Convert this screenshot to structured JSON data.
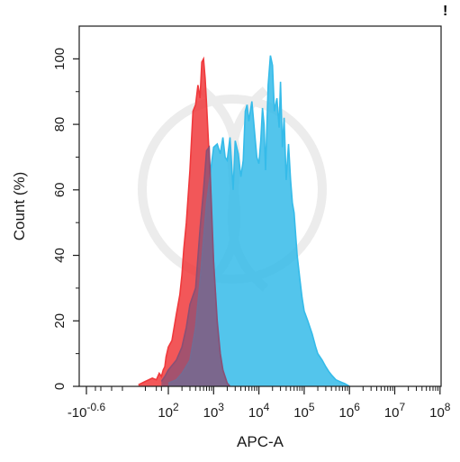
{
  "corner_mark": "!",
  "chart_data": {
    "type": "area",
    "title": "",
    "xlabel": "APC-A",
    "ylabel": "Count (%)",
    "x_scale": "biexponential",
    "xlim": [
      -10,
      100000000
    ],
    "ylim": [
      0,
      110
    ],
    "x_ticks": [
      {
        "label": "-10",
        "sup": "-0.6",
        "value": -0.25
      },
      {
        "label": "10",
        "sup": "2",
        "value": 100
      },
      {
        "label": "10",
        "sup": "3",
        "value": 1000
      },
      {
        "label": "10",
        "sup": "4",
        "value": 10000
      },
      {
        "label": "10",
        "sup": "5",
        "value": 100000
      },
      {
        "label": "10",
        "sup": "6",
        "value": 1000000
      },
      {
        "label": "10",
        "sup": "7",
        "value": 10000000
      },
      {
        "label": "10",
        "sup": "8",
        "value": 100000000
      }
    ],
    "y_ticks": [
      0,
      20,
      40,
      60,
      80,
      100
    ],
    "grid": false,
    "series": [
      {
        "color": "#f0393c",
        "x": [
          5,
          10,
          20,
          30,
          40,
          50,
          60,
          70,
          80,
          100,
          120,
          150,
          180,
          200,
          220,
          250,
          280,
          300,
          350,
          400,
          450,
          500,
          550,
          600,
          650,
          700,
          800,
          900,
          1000,
          1100,
          1200,
          1400,
          1600,
          1800,
          2000,
          2300
        ],
        "y": [
          0.5,
          1.5,
          2.5,
          2,
          4,
          3,
          5,
          6,
          9,
          12,
          14,
          22,
          28,
          34,
          42,
          50,
          60,
          66,
          84,
          86,
          92,
          88,
          99,
          100,
          94,
          86,
          70,
          50,
          38,
          28,
          18,
          10,
          5,
          2.5,
          1,
          0
        ]
      },
      {
        "color": "#35bbe9",
        "x": [
          100,
          150,
          200,
          300,
          400,
          500,
          600,
          700,
          800,
          900,
          1000,
          1200,
          1400,
          1600,
          1800,
          2000,
          2300,
          2700,
          3000,
          3500,
          4000,
          4500,
          5000,
          5500,
          6000,
          7000,
          8000,
          9000,
          10000,
          11000,
          12000,
          13000,
          14000,
          16000,
          18000,
          20000,
          22000,
          25000,
          28000,
          30000,
          33000,
          36000,
          40000,
          45000,
          50000,
          55000,
          60000,
          70000,
          80000,
          90000,
          100000,
          120000,
          150000,
          180000,
          200000,
          250000,
          300000,
          350000,
          400000,
          500000,
          600000,
          800000,
          1000000
        ],
        "y": [
          1,
          2,
          4,
          8,
          18,
          32,
          45,
          56,
          62,
          68,
          73,
          74,
          71,
          76,
          70,
          69,
          76,
          60,
          75,
          71,
          64,
          69,
          84,
          86,
          81,
          87,
          78,
          70,
          68,
          75,
          85,
          80,
          66,
          92,
          101,
          98,
          84,
          88,
          79,
          93,
          73,
          82,
          63,
          74,
          63,
          56,
          53,
          40,
          33,
          27,
          23,
          20,
          16,
          12,
          10,
          8,
          6,
          4.5,
          3.5,
          2,
          1.5,
          0.8,
          0
        ]
      },
      {
        "color": "#8a5075",
        "x": [
          50,
          70,
          100,
          150,
          200,
          250,
          300,
          400,
          500,
          600,
          700,
          800,
          1000,
          1200,
          1400,
          1600,
          2000,
          2300
        ],
        "y": [
          1.5,
          3,
          5,
          8,
          12,
          18,
          25,
          30,
          48,
          60,
          72,
          73,
          38,
          20,
          10,
          5,
          1,
          0
        ]
      }
    ]
  }
}
